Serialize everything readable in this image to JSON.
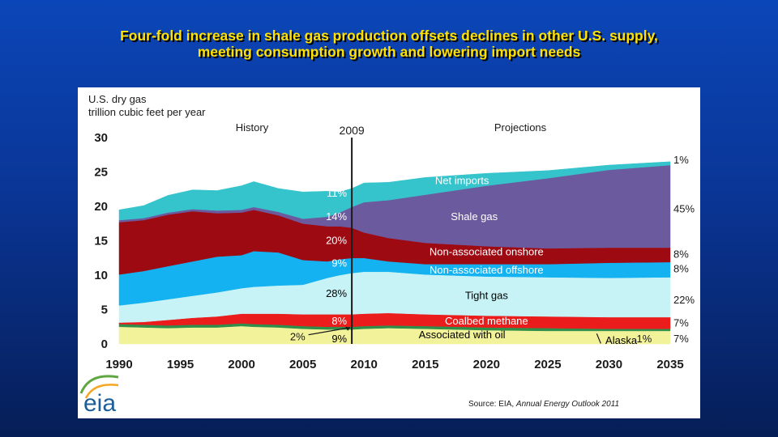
{
  "slide": {
    "title_line1": "Four-fold increase in shale gas production offsets declines in other U.S. supply,",
    "title_line2": "meeting consumption growth and lowering import needs",
    "title_color": "#ffe100"
  },
  "chart_data": {
    "type": "area",
    "ylabel_line1": "U.S. dry gas",
    "ylabel_line2": "trillion cubic feet per year",
    "history_label": "History",
    "projections_label": "Projections",
    "divider_label": "2009",
    "divider_x": 2009,
    "xlim": [
      1990,
      2035
    ],
    "ylim": [
      0,
      30
    ],
    "xticks": [
      "1990",
      "1995",
      "2000",
      "2005",
      "2010",
      "2015",
      "2020",
      "2025",
      "2030",
      "2035"
    ],
    "yticks": [
      "0",
      "5",
      "10",
      "15",
      "20",
      "25",
      "30"
    ],
    "x": [
      1990,
      1992,
      1994,
      1996,
      1998,
      2000,
      2001,
      2003,
      2005,
      2007,
      2008,
      2009,
      2010,
      2012,
      2015,
      2020,
      2025,
      2030,
      2035
    ],
    "series": [
      {
        "name": "Associated with oil",
        "color": "#f2f29a",
        "values": [
          2.5,
          2.4,
          2.3,
          2.4,
          2.4,
          2.6,
          2.5,
          2.4,
          2.2,
          2.1,
          2.1,
          2.1,
          2.2,
          2.3,
          2.2,
          2.0,
          1.9,
          1.9,
          1.9
        ]
      },
      {
        "name": "Alaska",
        "color": "#2f8f4a",
        "values": [
          0.4,
          0.4,
          0.4,
          0.4,
          0.4,
          0.4,
          0.4,
          0.4,
          0.4,
          0.4,
          0.4,
          0.4,
          0.4,
          0.4,
          0.4,
          0.4,
          0.4,
          0.3,
          0.3
        ]
      },
      {
        "name": "Coalbed methane",
        "color": "#ea1c1c",
        "values": [
          0.2,
          0.4,
          0.8,
          1.0,
          1.2,
          1.4,
          1.5,
          1.6,
          1.7,
          1.8,
          1.8,
          1.8,
          1.8,
          1.8,
          1.7,
          1.7,
          1.7,
          1.7,
          1.7
        ]
      },
      {
        "name": "Tight gas",
        "color": "#c7f3f6",
        "values": [
          2.5,
          2.8,
          3.0,
          3.2,
          3.5,
          3.7,
          3.9,
          4.1,
          4.3,
          5.3,
          5.7,
          6.0,
          6.1,
          6.0,
          5.8,
          5.7,
          5.7,
          5.7,
          5.8
        ]
      },
      {
        "name": "Non-associated offshore",
        "color": "#14b2f0",
        "values": [
          4.5,
          4.6,
          4.8,
          5.0,
          5.2,
          4.8,
          5.2,
          4.8,
          3.6,
          2.4,
          2.3,
          2.2,
          2.0,
          1.5,
          1.5,
          1.8,
          1.9,
          2.2,
          2.2
        ]
      },
      {
        "name": "Non-associated onshore",
        "color": "#9e0a12",
        "values": [
          7.6,
          7.4,
          7.5,
          7.3,
          6.3,
          6.2,
          6.0,
          5.4,
          5.3,
          5.1,
          4.8,
          4.4,
          3.7,
          3.4,
          3.1,
          2.6,
          2.3,
          2.2,
          2.1
        ]
      },
      {
        "name": "Shale gas",
        "color": "#6c5a9e",
        "values": [
          0.3,
          0.3,
          0.3,
          0.3,
          0.4,
          0.4,
          0.4,
          0.5,
          0.7,
          1.4,
          2.0,
          3.0,
          4.4,
          5.5,
          7.0,
          8.8,
          10.2,
          11.3,
          12.0
        ]
      },
      {
        "name": "Net imports",
        "color": "#35c4cb",
        "values": [
          1.5,
          1.8,
          2.5,
          2.8,
          2.9,
          3.5,
          3.7,
          3.4,
          3.9,
          3.7,
          3.0,
          2.7,
          2.8,
          2.6,
          2.5,
          1.8,
          1.1,
          0.7,
          0.5
        ]
      }
    ],
    "area_labels": [
      {
        "text": "Net imports",
        "x": 2018,
        "y": 23.8,
        "color": "#ffffff",
        "size": 13
      },
      {
        "text": "Shale gas",
        "x": 2019,
        "y": 18.6,
        "color": "#ffffff",
        "size": 13
      },
      {
        "text": "Non-associated onshore",
        "x": 2020,
        "y": 13.5,
        "color": "#ffffff",
        "size": 13
      },
      {
        "text": "Non-associated offshore",
        "x": 2020,
        "y": 10.8,
        "color": "#ffffff",
        "size": 13
      },
      {
        "text": "Tight gas",
        "x": 2020,
        "y": 7.1,
        "color": "#000000",
        "size": 13
      },
      {
        "text": "Coalbed methane",
        "x": 2020,
        "y": 3.4,
        "color": "#ffffff",
        "size": 13
      },
      {
        "text": "Associated with oil",
        "x": 2018,
        "y": 1.4,
        "color": "#000000",
        "size": 13
      },
      {
        "text": "Alaska",
        "x": 2031,
        "y": 0.6,
        "color": "#000000",
        "size": 13
      }
    ],
    "share_labels_2009": [
      {
        "text": "11%",
        "y": 22.0,
        "color": "#ffffff"
      },
      {
        "text": "14%",
        "y": 18.6,
        "color": "#ffffff"
      },
      {
        "text": "20%",
        "y": 15.1,
        "color": "#ffffff"
      },
      {
        "text": "9%",
        "y": 11.8,
        "color": "#ffffff"
      },
      {
        "text": "28%",
        "y": 7.4,
        "color": "#000000"
      },
      {
        "text": "8%",
        "y": 3.4,
        "color": "#ffffff"
      },
      {
        "text": "9%",
        "y": 0.8,
        "color": "#000000"
      }
    ],
    "alaska_share_2009": {
      "text": "2%",
      "x": 2005.2,
      "y": 1.1
    },
    "share_labels_2035": [
      {
        "text": "1%",
        "y": 26.8
      },
      {
        "text": "45%",
        "y": 19.7
      },
      {
        "text": "8%",
        "y": 13.1
      },
      {
        "text": "8%",
        "y": 11.0
      },
      {
        "text": "22%",
        "y": 6.5
      },
      {
        "text": "7%",
        "y": 3.1
      },
      {
        "text": "7%",
        "y": 0.8
      }
    ],
    "alaska_share_2035": {
      "text": "1%",
      "x": 2033.5,
      "y": 0.8
    },
    "source_prefix": "Source:  EIA, ",
    "source_italic": "Annual Energy Outlook 2011"
  },
  "logo": {
    "text": "eia",
    "colors": [
      "#1c5e98",
      "#5fa73f",
      "#f5a623"
    ]
  }
}
